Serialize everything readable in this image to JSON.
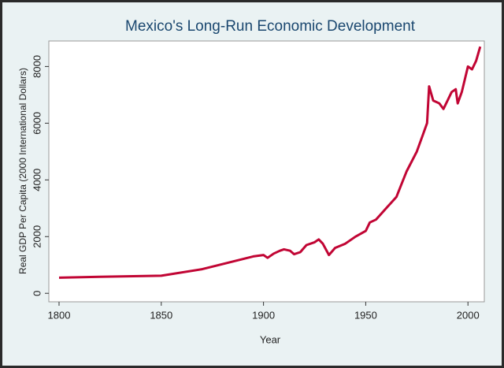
{
  "chart_data": {
    "type": "line",
    "title": "Mexico's Long-Run Economic Development",
    "x_label": "Year",
    "y_label": "Real GDP Per Capita (2000 International Dollars)",
    "x": [
      1800,
      1820,
      1850,
      1870,
      1895,
      1900,
      1902,
      1905,
      1908,
      1910,
      1913,
      1915,
      1918,
      1921,
      1925,
      1927,
      1929,
      1932,
      1935,
      1940,
      1945,
      1950,
      1952,
      1955,
      1960,
      1965,
      1970,
      1975,
      1978,
      1980,
      1981,
      1983,
      1986,
      1988,
      1990,
      1992,
      1994,
      1995,
      1997,
      2000,
      2002,
      2004,
      2006
    ],
    "values": [
      550,
      580,
      620,
      850,
      1300,
      1350,
      1250,
      1400,
      1500,
      1550,
      1500,
      1380,
      1450,
      1700,
      1800,
      1900,
      1750,
      1350,
      1600,
      1750,
      2000,
      2200,
      2500,
      2600,
      3000,
      3400,
      4300,
      5000,
      5600,
      6000,
      7300,
      6800,
      6700,
      6500,
      6800,
      7100,
      7200,
      6700,
      7100,
      8000,
      7900,
      8200,
      8700
    ],
    "color": "#c10534",
    "xlim": [
      1795,
      2008
    ],
    "ylim": [
      -300,
      8900
    ],
    "xticks": [
      1800,
      1850,
      1900,
      1950,
      2000
    ],
    "yticks": [
      0,
      2000,
      4000,
      6000,
      8000
    ],
    "grid": false
  }
}
